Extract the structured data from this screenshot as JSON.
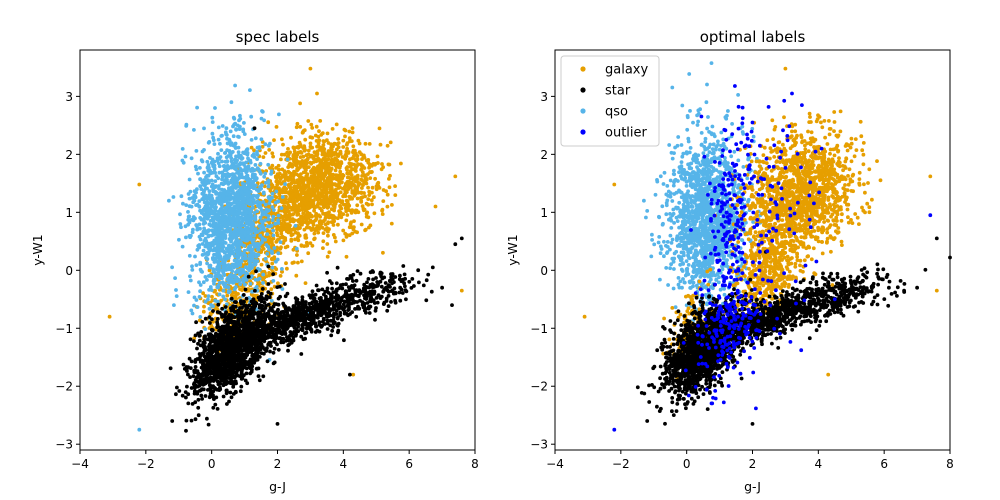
{
  "chart_data": [
    {
      "type": "scatter",
      "title": "spec labels",
      "xlabel": "g-J",
      "ylabel": "y-W1",
      "xlim": [
        -4,
        8
      ],
      "ylim": [
        -3.1,
        3.8
      ],
      "xticks": [
        -4,
        -2,
        0,
        2,
        4,
        6,
        8
      ],
      "yticks": [
        -3,
        -2,
        -1,
        0,
        1,
        2,
        3
      ],
      "xtick_labels": [
        "−4",
        "−2",
        "0",
        "2",
        "4",
        "6",
        "8"
      ],
      "ytick_labels": [
        "−3",
        "−2",
        "−1",
        "0",
        "1",
        "2",
        "3"
      ],
      "legend": false,
      "series": [
        {
          "name": "galaxy",
          "color": "#e69f00",
          "clusters": [
            {
              "cx": 3.3,
              "cy": 1.45,
              "sx": 0.85,
              "sy": 0.45,
              "n": 1300,
              "rho": 0.1
            },
            {
              "cx": 1.7,
              "cy": 0.6,
              "sx": 0.65,
              "sy": 0.6,
              "n": 600,
              "rho": 0.5
            },
            {
              "cx": 0.7,
              "cy": -0.6,
              "sx": 0.5,
              "sy": 0.4,
              "n": 250,
              "rho": 0.3
            }
          ],
          "points": [
            {
              "x": 3.0,
              "y": 3.48
            },
            {
              "x": -2.2,
              "y": 1.48
            },
            {
              "x": -3.1,
              "y": -0.8
            },
            {
              "x": 7.4,
              "y": 1.62
            },
            {
              "x": 7.6,
              "y": -0.35
            },
            {
              "x": 6.8,
              "y": 1.1
            },
            {
              "x": 4.3,
              "y": -1.8
            },
            {
              "x": 3.2,
              "y": 3.05
            }
          ]
        },
        {
          "name": "qso",
          "color": "#56b4e9",
          "clusters": [
            {
              "cx": 0.6,
              "cy": 0.9,
              "sx": 0.6,
              "sy": 0.7,
              "n": 1600,
              "rho": 0.05
            }
          ],
          "points": [
            {
              "x": -2.2,
              "y": -2.75
            },
            {
              "x": 0.1,
              "y": 2.8
            },
            {
              "x": 0.6,
              "y": 2.9
            },
            {
              "x": 1.2,
              "y": 2.65
            },
            {
              "x": -1.3,
              "y": 1.2
            },
            {
              "x": 0.0,
              "y": -0.1
            }
          ]
        },
        {
          "name": "star",
          "color": "#000000",
          "clusters": [
            {
              "cx": 0.6,
              "cy": -1.35,
              "sx": 0.6,
              "sy": 0.4,
              "n": 1500,
              "rho": 0.55
            },
            {
              "cx": 2.6,
              "cy": -0.85,
              "sx": 0.9,
              "sy": 0.25,
              "n": 650,
              "rho": 0.7
            },
            {
              "cx": 4.7,
              "cy": -0.4,
              "sx": 0.8,
              "sy": 0.2,
              "n": 250,
              "rho": 0.5
            }
          ],
          "points": [
            {
              "x": 7.6,
              "y": 0.55
            },
            {
              "x": 7.4,
              "y": 0.45
            },
            {
              "x": 7.3,
              "y": -0.6
            },
            {
              "x": 4.2,
              "y": -1.8
            },
            {
              "x": 2.0,
              "y": -2.65
            },
            {
              "x": -1.2,
              "y": -2.6
            },
            {
              "x": 7.0,
              "y": -0.3
            },
            {
              "x": 1.3,
              "y": 2.45
            }
          ]
        }
      ]
    },
    {
      "type": "scatter",
      "title": "optimal labels",
      "xlabel": "g-J",
      "ylabel": "y-W1",
      "xlim": [
        -4,
        8
      ],
      "ylim": [
        -3.1,
        3.8
      ],
      "xticks": [
        -4,
        -2,
        0,
        2,
        4,
        6,
        8
      ],
      "yticks": [
        -3,
        -2,
        -1,
        0,
        1,
        2,
        3
      ],
      "xtick_labels": [
        "−4",
        "−2",
        "0",
        "2",
        "4",
        "6",
        "8"
      ],
      "ytick_labels": [
        "−3",
        "−2",
        "−1",
        "0",
        "1",
        "2",
        "3"
      ],
      "legend": true,
      "legend_position": "top-left",
      "legend_order": [
        "galaxy",
        "star",
        "qso",
        "outlier"
      ],
      "series": [
        {
          "name": "qso",
          "color": "#56b4e9",
          "clusters": [
            {
              "cx": 0.6,
              "cy": 0.9,
              "sx": 0.6,
              "sy": 0.7,
              "n": 1500,
              "rho": 0.05
            }
          ],
          "points": [
            {
              "x": 0.6,
              "y": 2.9
            },
            {
              "x": -1.3,
              "y": 1.2
            },
            {
              "x": 0.1,
              "y": 2.75
            }
          ]
        },
        {
          "name": "galaxy",
          "color": "#e69f00",
          "clusters": [
            {
              "cx": 3.5,
              "cy": 1.35,
              "sx": 0.8,
              "sy": 0.5,
              "n": 1400,
              "rho": 0.15
            },
            {
              "cx": 2.5,
              "cy": 0.1,
              "sx": 0.5,
              "sy": 0.45,
              "n": 500,
              "rho": 0.3
            },
            {
              "cx": 0.2,
              "cy": -0.9,
              "sx": 0.4,
              "sy": 0.35,
              "n": 120,
              "rho": 0.2
            }
          ],
          "points": [
            {
              "x": 3.0,
              "y": 3.48
            },
            {
              "x": -2.2,
              "y": 1.48
            },
            {
              "x": -3.1,
              "y": -0.8
            },
            {
              "x": 7.4,
              "y": 1.62
            },
            {
              "x": 7.6,
              "y": -0.35
            },
            {
              "x": 4.3,
              "y": -1.8
            }
          ]
        },
        {
          "name": "star",
          "color": "#000000",
          "clusters": [
            {
              "cx": 0.5,
              "cy": -1.35,
              "sx": 0.6,
              "sy": 0.4,
              "n": 1500,
              "rho": 0.55
            },
            {
              "cx": 2.7,
              "cy": -0.8,
              "sx": 0.9,
              "sy": 0.25,
              "n": 650,
              "rho": 0.7
            },
            {
              "cx": 4.8,
              "cy": -0.4,
              "sx": 0.8,
              "sy": 0.2,
              "n": 250,
              "rho": 0.5
            }
          ],
          "points": [
            {
              "x": 7.6,
              "y": 0.55
            },
            {
              "x": 8.0,
              "y": 0.22
            },
            {
              "x": 7.0,
              "y": -0.3
            },
            {
              "x": 2.0,
              "y": -2.65
            },
            {
              "x": -1.2,
              "y": -2.6
            }
          ]
        },
        {
          "name": "outlier",
          "color": "#0000ff",
          "clusters": [
            {
              "cx": 1.3,
              "cy": 0.9,
              "sx": 0.35,
              "sy": 0.8,
              "n": 180,
              "rho": 0.0
            },
            {
              "cx": 1.2,
              "cy": -1.0,
              "sx": 0.6,
              "sy": 0.5,
              "n": 200,
              "rho": 0.3
            },
            {
              "cx": 2.6,
              "cy": 1.0,
              "sx": 0.7,
              "sy": 1.0,
              "n": 90,
              "rho": 0.0
            }
          ],
          "points": [
            {
              "x": -2.2,
              "y": -2.75
            },
            {
              "x": 3.2,
              "y": 3.05
            },
            {
              "x": 3.5,
              "y": 2.85
            },
            {
              "x": 2.0,
              "y": 2.55
            },
            {
              "x": 4.1,
              "y": 2.1
            },
            {
              "x": 7.4,
              "y": 0.95
            },
            {
              "x": 4.5,
              "y": -0.5
            },
            {
              "x": 0.8,
              "y": -2.2
            }
          ]
        }
      ]
    }
  ]
}
